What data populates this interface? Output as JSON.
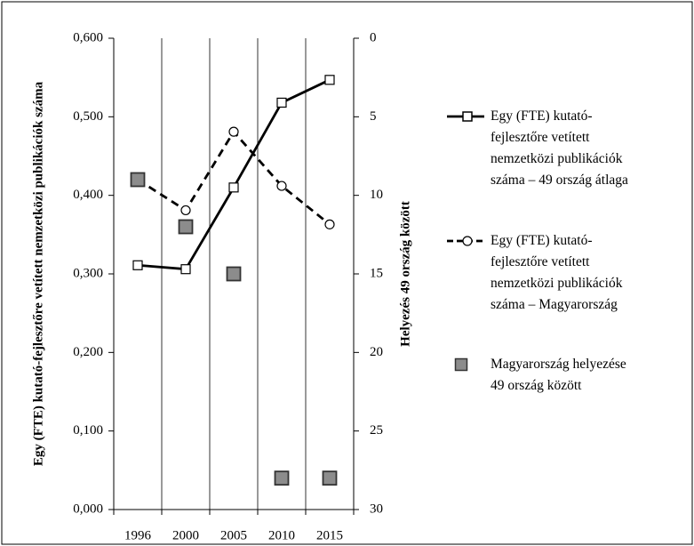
{
  "chart_data": {
    "type": "line",
    "categories": [
      "1996",
      "2000",
      "2005",
      "2010",
      "2015"
    ],
    "y_label": "Egy (FTE) kutató-fejlesztőre vetített nemzetközi publikációk száma",
    "y2_label": "Helyezés 49 ország között",
    "ylim": [
      0,
      0.6
    ],
    "yticks": [
      {
        "value": 0,
        "label": "0,000"
      },
      {
        "value": 0.1,
        "label": "0,100"
      },
      {
        "value": 0.2,
        "label": "0,200"
      },
      {
        "value": 0.3,
        "label": "0,300"
      },
      {
        "value": 0.4,
        "label": "0,400"
      },
      {
        "value": 0.5,
        "label": "0,500"
      },
      {
        "value": 0.6,
        "label": "0,600"
      }
    ],
    "y2lim": [
      30,
      0
    ],
    "y2ticks": [
      0,
      5,
      10,
      15,
      20,
      25,
      30
    ],
    "grid": true,
    "legend": "right",
    "series": [
      {
        "name": "Egy (FTE) kutató-fejlesztőre vetített nemzetközi publikációk száma – 49 ország átlaga",
        "color": "#000000",
        "style": "solid",
        "marker": "square",
        "values": [
          0.311,
          0.306,
          0.41,
          0.518,
          0.547
        ]
      },
      {
        "name": "Egy (FTE) kutató-fejlesztőre vetített nemzetközi publikációk száma – Magyarország",
        "color": "#000000",
        "style": "dashed",
        "marker": "circle",
        "values": [
          0.42,
          0.381,
          0.481,
          0.412,
          0.363
        ]
      },
      {
        "name": "Magyarország helyezése 49 ország között",
        "color": "#8c8c8c",
        "style": "none",
        "marker": "square",
        "axis": "y2",
        "values": [
          9,
          12,
          15,
          28,
          28
        ]
      }
    ]
  }
}
